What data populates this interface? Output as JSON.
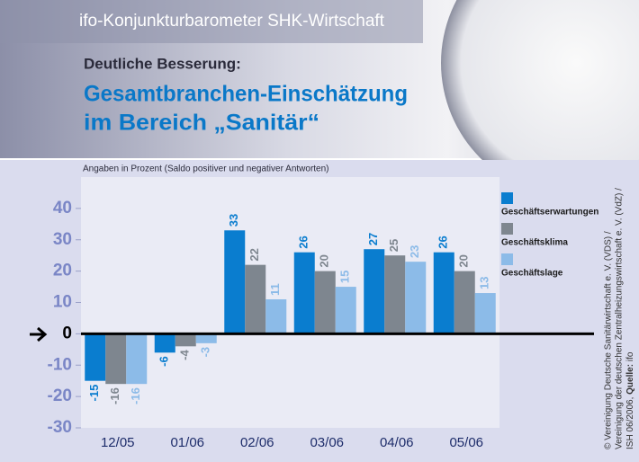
{
  "header": {
    "brand": "ifo-Konjunkturbarometer SHK-Wirtschaft",
    "subtitle": "Deutliche Besserung:",
    "title_lines": [
      "Gesamtbranchen-Einschätzung",
      "im Bereich „Sanitär“"
    ]
  },
  "credit": {
    "line1": "© Vereinigung Deutsche Sanitärwirtschaft e. V. (VDS) /",
    "line2": "Vereinigung der deutschen Zentralheizungswirtschaft e. V. (VdZ) /",
    "line3": "ISH 06/2006,",
    "source_label": "Quelle:",
    "source": "ifo"
  },
  "chart_data": {
    "type": "bar",
    "note": "Angaben in Prozent (Saldo positiver und negativer Antworten)",
    "categories": [
      "12/05",
      "01/06",
      "02/06",
      "03/06",
      "04/06",
      "05/06"
    ],
    "series": [
      {
        "name": "Geschäftserwartungen",
        "color": "#0a7dcf",
        "values": [
          -15,
          -6,
          33,
          26,
          27,
          26
        ]
      },
      {
        "name": "Geschäftsklima",
        "color": "#7e868f",
        "values": [
          -16,
          -4,
          22,
          20,
          25,
          20
        ]
      },
      {
        "name": "Geschäftslage",
        "color": "#8cbbe8",
        "values": [
          -16,
          -3,
          11,
          15,
          23,
          13
        ]
      }
    ],
    "ylim": [
      -30,
      50
    ],
    "yticks": [
      -30,
      -20,
      -10,
      0,
      10,
      20,
      30,
      40
    ],
    "legend": "right-top",
    "data_labels": true
  }
}
